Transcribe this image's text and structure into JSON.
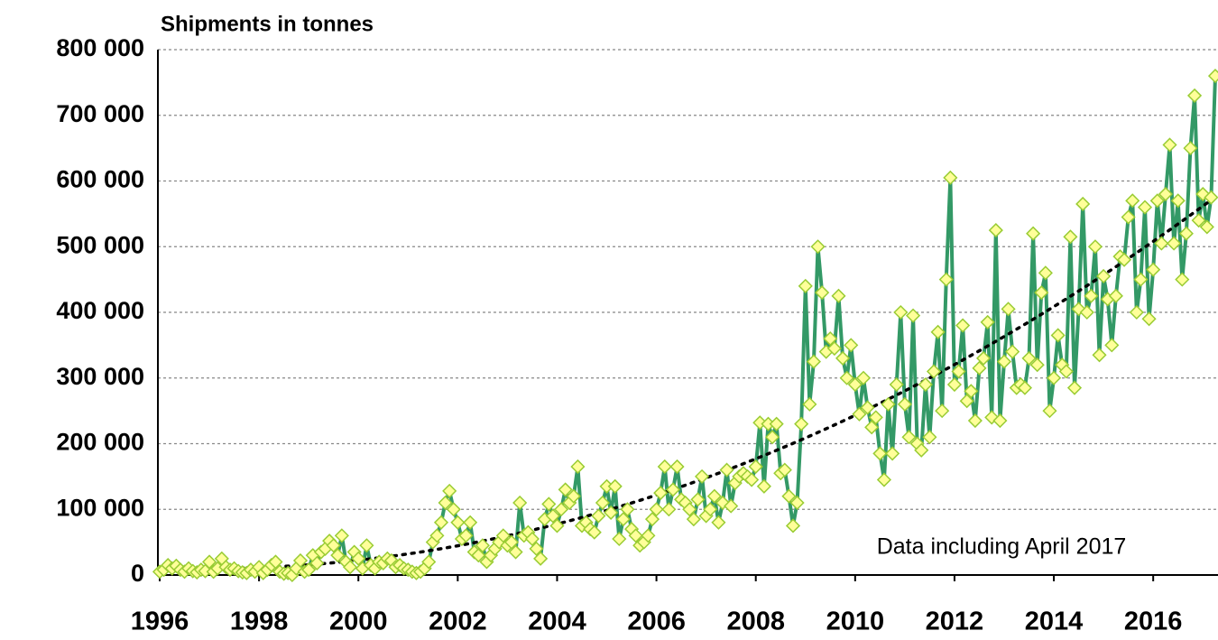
{
  "chart_data": {
    "type": "line",
    "y_axis_title": "Shipments in tonnes",
    "annotation": "Data including April 2017",
    "categories": [
      "1996",
      null,
      null,
      null,
      null,
      null,
      null,
      null,
      null,
      null,
      null,
      null,
      null,
      null,
      null,
      null,
      null,
      null,
      null,
      null,
      null,
      null,
      null,
      null,
      "1998",
      null,
      null,
      null,
      null,
      null,
      null,
      null,
      null,
      null,
      null,
      null,
      null,
      null,
      null,
      null,
      null,
      null,
      null,
      null,
      null,
      null,
      null,
      null,
      "2000",
      null,
      null,
      null,
      null,
      null,
      null,
      null,
      null,
      null,
      null,
      null,
      null,
      null,
      null,
      null,
      null,
      null,
      null,
      null,
      null,
      null,
      null,
      null,
      "2002",
      null,
      null,
      null,
      null,
      null,
      null,
      null,
      null,
      null,
      null,
      null,
      null,
      null,
      null,
      null,
      null,
      null,
      null,
      null,
      null,
      null,
      null,
      null,
      "2004",
      null,
      null,
      null,
      null,
      null,
      null,
      null,
      null,
      null,
      null,
      null,
      null,
      null,
      null,
      null,
      null,
      null,
      null,
      null,
      null,
      null,
      null,
      null,
      "2006",
      null,
      null,
      null,
      null,
      null,
      null,
      null,
      null,
      null,
      null,
      null,
      null,
      null,
      null,
      null,
      null,
      null,
      null,
      null,
      null,
      null,
      null,
      null,
      "2008",
      null,
      null,
      null,
      null,
      null,
      null,
      null,
      null,
      null,
      null,
      null,
      null,
      null,
      null,
      null,
      null,
      null,
      null,
      null,
      null,
      null,
      null,
      null,
      "2010",
      null,
      null,
      null,
      null,
      null,
      null,
      null,
      null,
      null,
      null,
      null,
      null,
      null,
      null,
      null,
      null,
      null,
      null,
      null,
      null,
      null,
      null,
      null,
      "2012",
      null,
      null,
      null,
      null,
      null,
      null,
      null,
      null,
      null,
      null,
      null,
      null,
      null,
      null,
      null,
      null,
      null,
      null,
      null,
      null,
      null,
      null,
      null,
      "2014",
      null,
      null,
      null,
      null,
      null,
      null,
      null,
      null,
      null,
      null,
      null,
      null,
      null,
      null,
      null,
      null,
      null,
      null,
      null,
      null,
      null,
      null,
      null,
      "2016",
      null,
      null,
      null,
      null,
      null,
      null,
      null,
      null,
      null,
      null,
      null,
      null,
      null,
      null,
      null
    ],
    "series": [
      {
        "color": "#339966",
        "marker_fill": "#ffff99",
        "marker_edge": "#99cc33",
        "values": [
          5000,
          8000,
          15000,
          10000,
          14000,
          8000,
          5000,
          10000,
          6000,
          4000,
          8000,
          6000,
          20000,
          5000,
          10000,
          25000,
          12000,
          8000,
          10000,
          6000,
          4000,
          3000,
          8000,
          5000,
          12000,
          3000,
          8000,
          15000,
          20000,
          5000,
          2000,
          3000,
          0,
          10000,
          22000,
          5000,
          8000,
          30000,
          18000,
          35000,
          40000,
          52000,
          45000,
          30000,
          60000,
          20000,
          12000,
          35000,
          25000,
          10000,
          45000,
          15000,
          10000,
          20000,
          18000,
          25000,
          22000,
          12000,
          15000,
          10000,
          8000,
          5000,
          3000,
          5000,
          10000,
          20000,
          50000,
          60000,
          80000,
          110000,
          128000,
          100000,
          80000,
          55000,
          60000,
          80000,
          35000,
          30000,
          45000,
          20000,
          30000,
          40000,
          50000,
          60000,
          45000,
          50000,
          35000,
          110000,
          60000,
          65000,
          55000,
          40000,
          25000,
          85000,
          108000,
          90000,
          75000,
          100000,
          130000,
          110000,
          120000,
          165000,
          75000,
          80000,
          70000,
          65000,
          90000,
          110000,
          135000,
          95000,
          135000,
          55000,
          85000,
          100000,
          70000,
          60000,
          45000,
          50000,
          60000,
          85000,
          100000,
          125000,
          165000,
          100000,
          130000,
          165000,
          115000,
          110000,
          100000,
          85000,
          115000,
          150000,
          90000,
          100000,
          120000,
          80000,
          110000,
          160000,
          105000,
          140000,
          150000,
          155000,
          150000,
          145000,
          165000,
          232000,
          135000,
          230000,
          210000,
          230000,
          155000,
          160000,
          120000,
          75000,
          110000,
          230000,
          440000,
          260000,
          325000,
          500000,
          430000,
          340000,
          360000,
          345000,
          425000,
          330000,
          300000,
          350000,
          290000,
          245000,
          300000,
          255000,
          225000,
          240000,
          185000,
          145000,
          260000,
          185000,
          290000,
          400000,
          260000,
          210000,
          395000,
          200000,
          190000,
          290000,
          210000,
          310000,
          370000,
          250000,
          450000,
          605000,
          290000,
          310000,
          380000,
          265000,
          280000,
          235000,
          315000,
          330000,
          385000,
          240000,
          525000,
          235000,
          325000,
          405000,
          340000,
          285000,
          290000,
          285000,
          330000,
          520000,
          320000,
          430000,
          460000,
          250000,
          300000,
          365000,
          320000,
          310000,
          515000,
          285000,
          405000,
          565000,
          400000,
          425000,
          500000,
          335000,
          455000,
          420000,
          350000,
          425000,
          485000,
          480000,
          545000,
          570000,
          400000,
          450000,
          560000,
          390000,
          465000,
          570000,
          505000,
          580000,
          655000,
          505000,
          570000,
          450000,
          520000,
          650000,
          730000,
          540000,
          580000,
          530000,
          575000,
          760000
        ]
      }
    ],
    "trendline": {
      "kind": "polynomial",
      "order": 2,
      "color": "#000000"
    },
    "ylim": [
      0,
      800000
    ],
    "yticks": [
      0,
      {
        "value": 100000,
        "label": "100 000"
      },
      {
        "value": 200000,
        "label": "200 000"
      },
      {
        "value": 300000,
        "label": "300 000"
      },
      {
        "value": 400000,
        "label": "400 000"
      },
      {
        "value": 500000,
        "label": "500 000"
      },
      {
        "value": 600000,
        "label": "600 000"
      },
      {
        "value": 700000,
        "label": "700 000"
      },
      {
        "value": 800000,
        "label": "800 000"
      }
    ],
    "grid": true
  }
}
